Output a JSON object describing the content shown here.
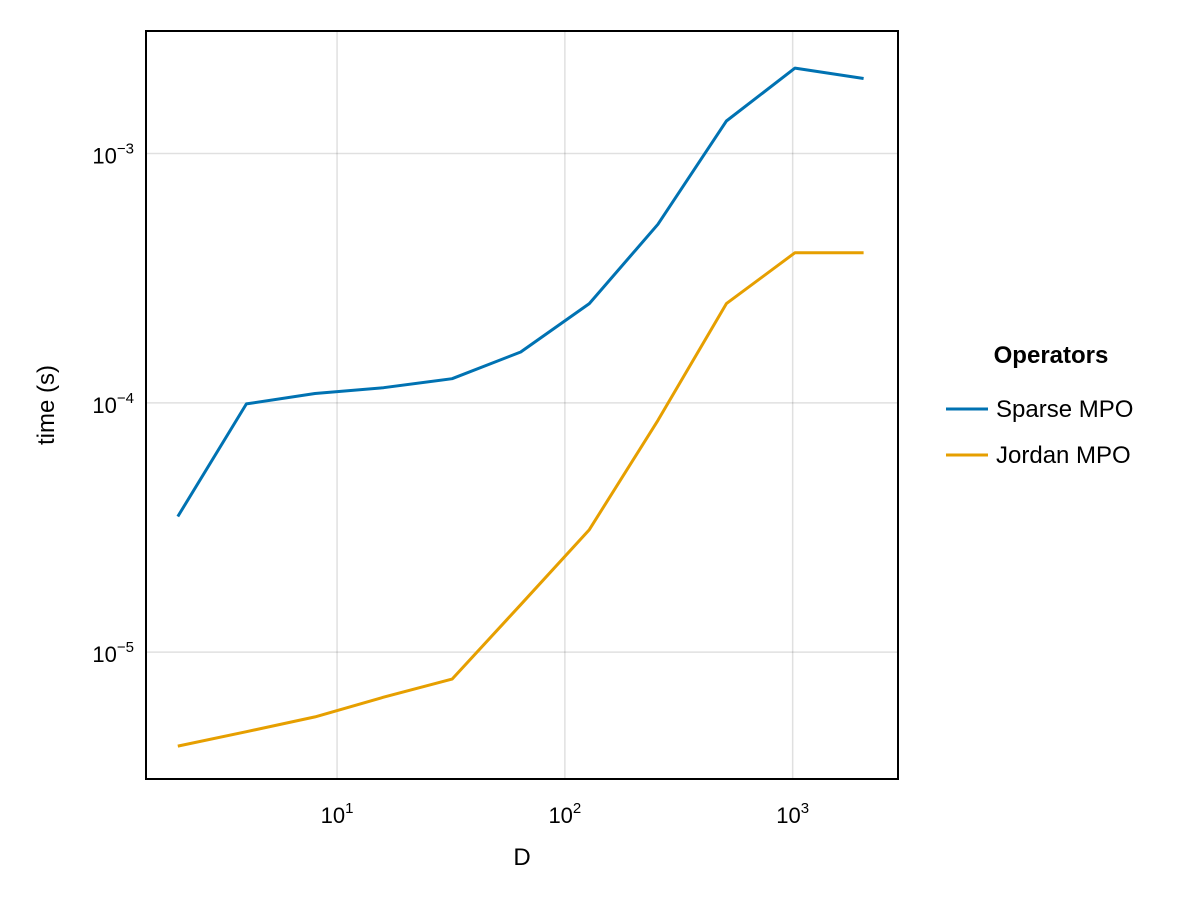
{
  "chart_data": {
    "type": "line",
    "xlabel": "D",
    "ylabel": "time (s)",
    "xscale": "log10",
    "yscale": "log10",
    "xlim": [
      1.45,
      2900
    ],
    "ylim": [
      3.1e-06,
      0.0031
    ],
    "grid": true,
    "legend_placement": "right",
    "x": [
      2,
      4,
      8,
      16,
      32,
      64,
      128,
      256,
      512,
      1024,
      2048
    ],
    "x_ticks": [
      {
        "value": 10,
        "base": "10",
        "exp": "1"
      },
      {
        "value": 100,
        "base": "10",
        "exp": "2"
      },
      {
        "value": 1000,
        "base": "10",
        "exp": "3"
      }
    ],
    "y_ticks": [
      {
        "value": 1e-05,
        "base": "10",
        "exp": "−5"
      },
      {
        "value": 0.0001,
        "base": "10",
        "exp": "−4"
      },
      {
        "value": 0.001,
        "base": "10",
        "exp": "−3"
      }
    ],
    "legend_title": "Operators",
    "series": [
      {
        "name": "Sparse MPO",
        "color": "#0072b2",
        "values": [
          3.5e-05,
          9.9e-05,
          0.000109,
          0.000115,
          0.000125,
          0.00016,
          0.00025,
          0.00052,
          0.00135,
          0.0022,
          0.002
        ]
      },
      {
        "name": "Jordan MPO",
        "color": "#e69f00",
        "values": [
          4.2e-06,
          4.8e-06,
          5.5e-06,
          6.6e-06,
          7.8e-06,
          1.55e-05,
          3.1e-05,
          8.5e-05,
          0.00025,
          0.0004,
          0.0004
        ]
      }
    ]
  }
}
